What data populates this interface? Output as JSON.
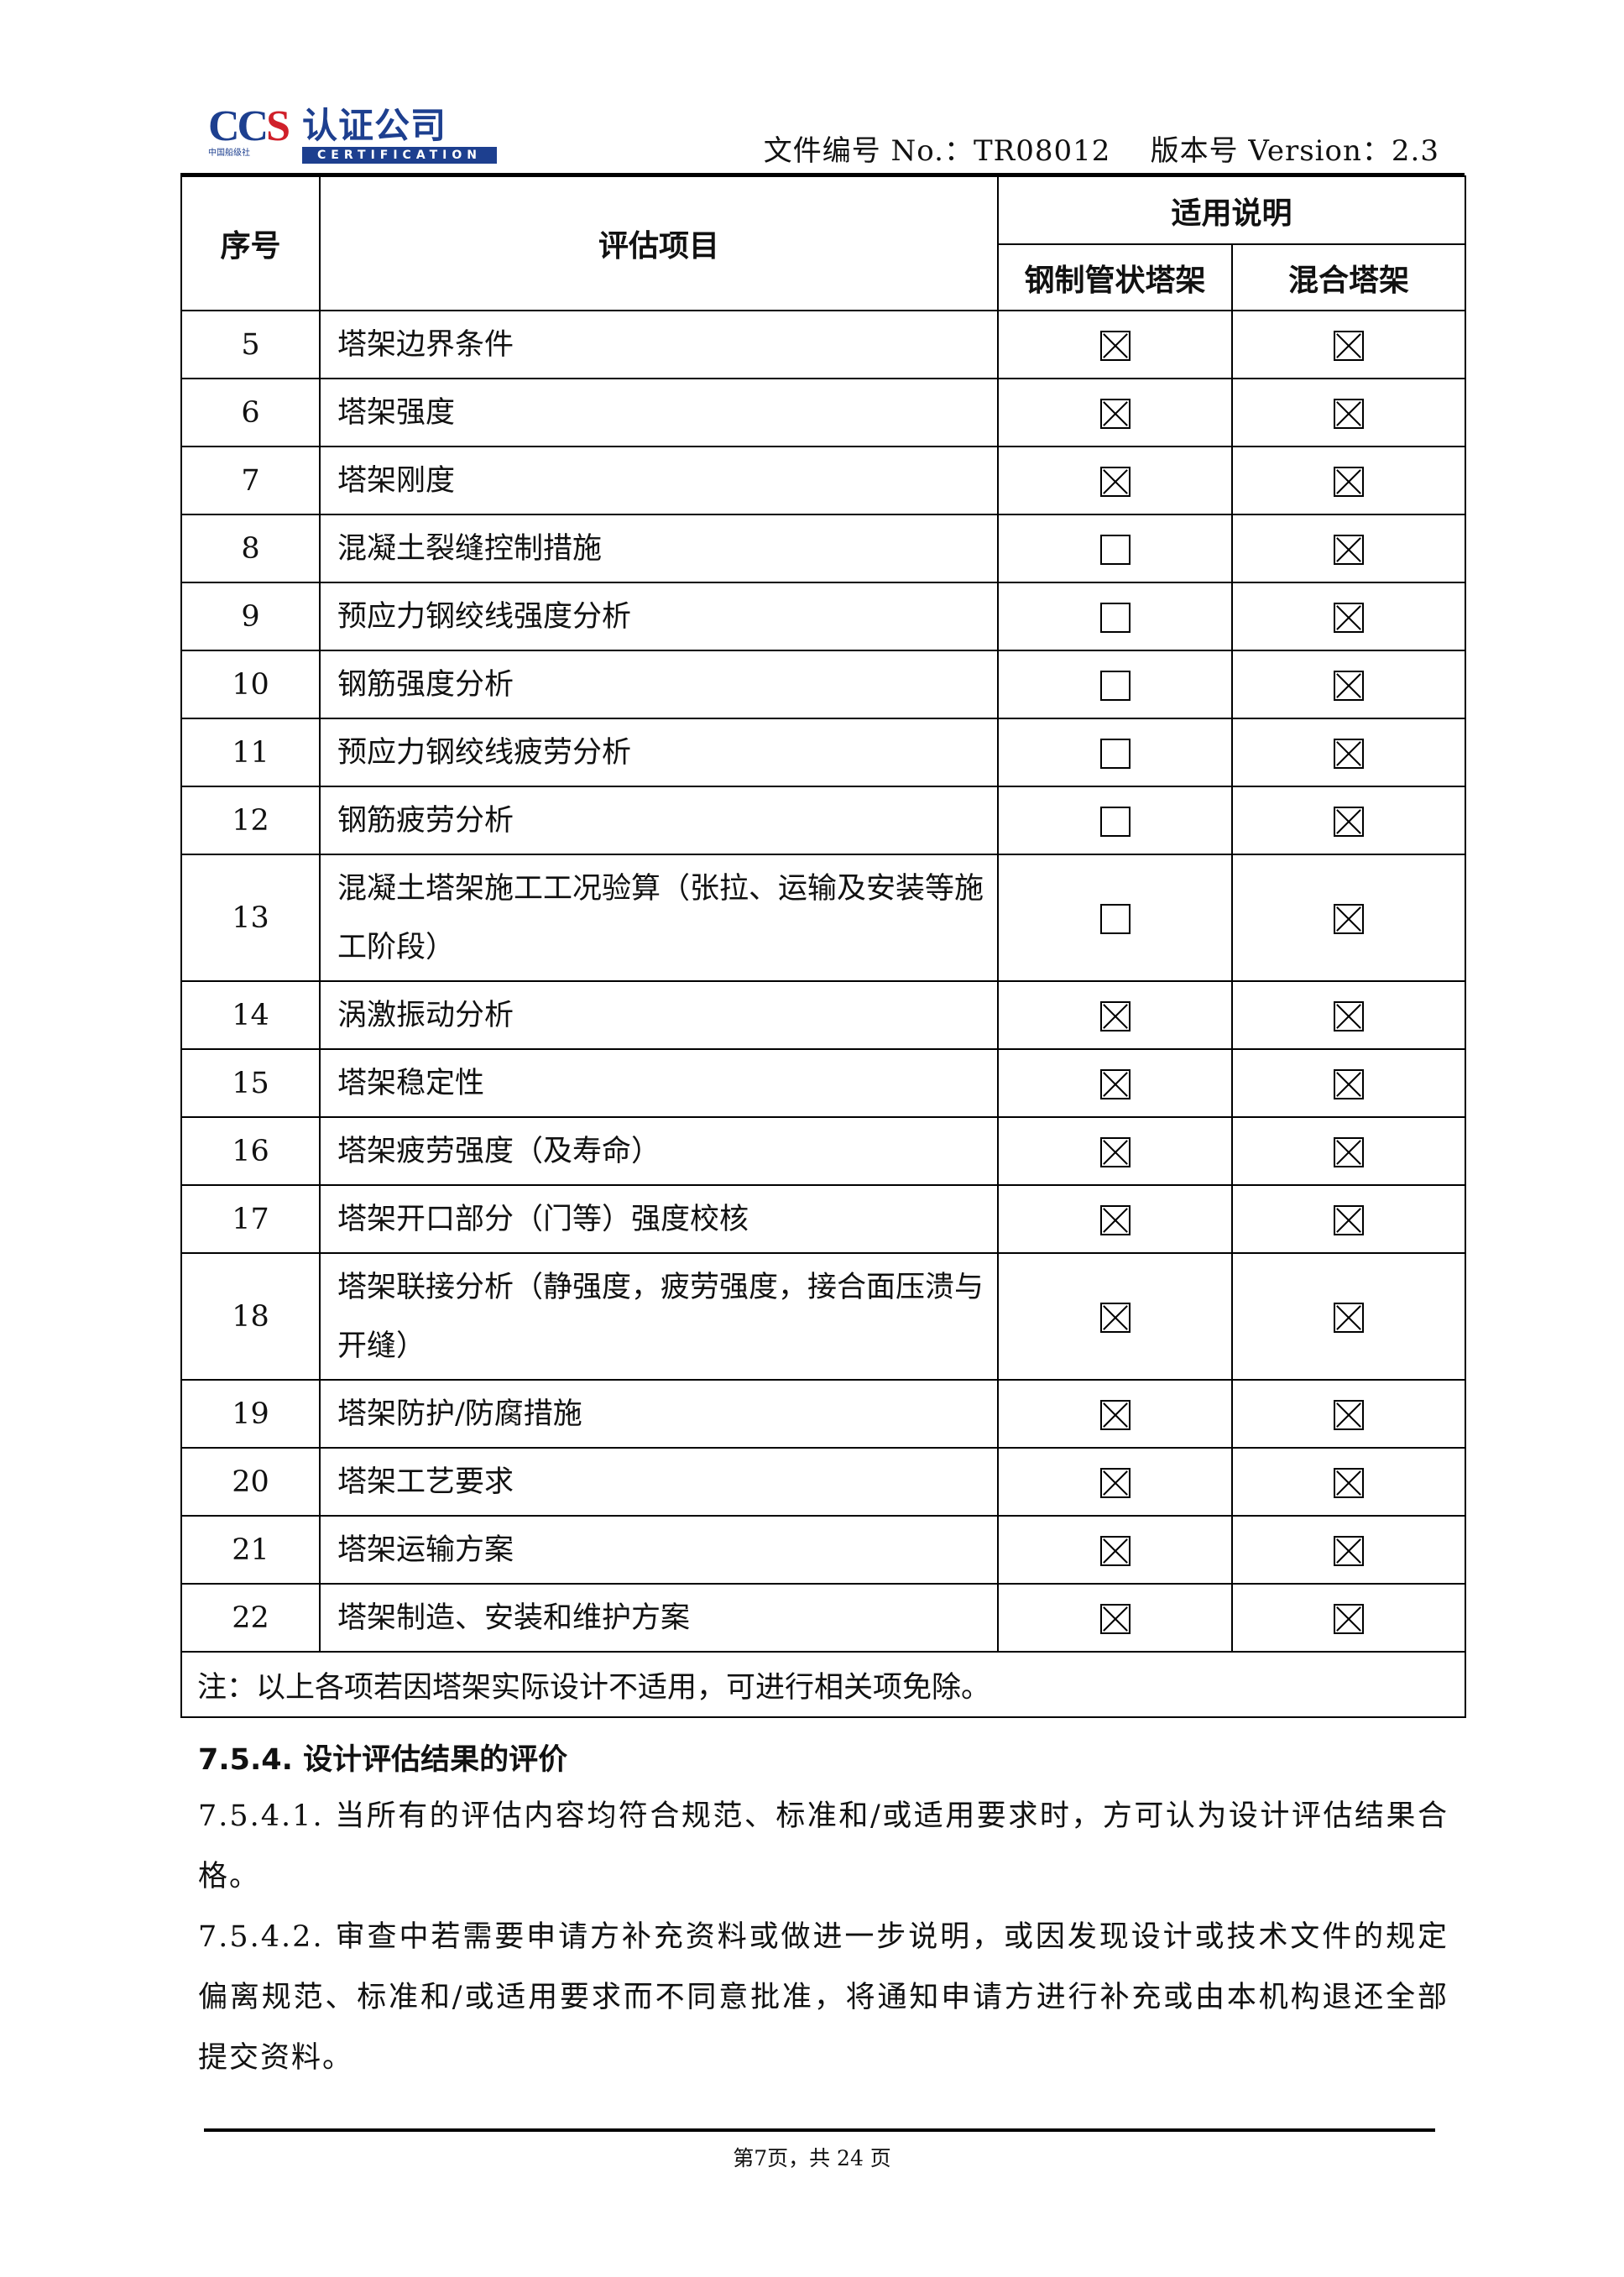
{
  "header": {
    "logo": {
      "mark": "CCS",
      "name": "认证公司",
      "society": "CHINA CLASSIFICATION SOCIETY 中国船级社",
      "subtitle": "CERTIFICATION"
    },
    "doc_no": "文件编号 No.：TR08012",
    "version": "版本号 Version：2.3"
  },
  "table": {
    "headers": {
      "no": "序号",
      "item": "评估项目",
      "applicability": "适用说明",
      "col1": "钢制管状塔架",
      "col2": "混合塔架"
    },
    "rows": [
      {
        "no": "5",
        "item": "塔架边界条件",
        "steel": true,
        "hybrid": true
      },
      {
        "no": "6",
        "item": "塔架强度",
        "steel": true,
        "hybrid": true
      },
      {
        "no": "7",
        "item": "塔架刚度",
        "steel": true,
        "hybrid": true
      },
      {
        "no": "8",
        "item": "混凝土裂缝控制措施",
        "steel": false,
        "hybrid": true
      },
      {
        "no": "9",
        "item": "预应力钢绞线强度分析",
        "steel": false,
        "hybrid": true
      },
      {
        "no": "10",
        "item": "钢筋强度分析",
        "steel": false,
        "hybrid": true
      },
      {
        "no": "11",
        "item": "预应力钢绞线疲劳分析",
        "steel": false,
        "hybrid": true
      },
      {
        "no": "12",
        "item": "钢筋疲劳分析",
        "steel": false,
        "hybrid": true
      },
      {
        "no": "13",
        "item": "混凝土塔架施工工况验算（张拉、运输及安装等施工阶段）",
        "steel": false,
        "hybrid": true
      },
      {
        "no": "14",
        "item": "涡激振动分析",
        "steel": true,
        "hybrid": true
      },
      {
        "no": "15",
        "item": "塔架稳定性",
        "steel": true,
        "hybrid": true
      },
      {
        "no": "16",
        "item": "塔架疲劳强度（及寿命）",
        "steel": true,
        "hybrid": true
      },
      {
        "no": "17",
        "item": "塔架开口部分（门等）强度校核",
        "steel": true,
        "hybrid": true
      },
      {
        "no": "18",
        "item": "塔架联接分析（静强度，疲劳强度，接合面压溃与开缝）",
        "steel": true,
        "hybrid": true
      },
      {
        "no": "19",
        "item": "塔架防护/防腐措施",
        "steel": true,
        "hybrid": true
      },
      {
        "no": "20",
        "item": "塔架工艺要求",
        "steel": true,
        "hybrid": true
      },
      {
        "no": "21",
        "item": "塔架运输方案",
        "steel": true,
        "hybrid": true
      },
      {
        "no": "22",
        "item": "塔架制造、安装和维护方案",
        "steel": true,
        "hybrid": true
      }
    ],
    "note": "注：以上各项若因塔架实际设计不适用，可进行相关项免除。"
  },
  "section": {
    "heading": "7.5.4. 设计评估结果的评价",
    "paragraphs": [
      "7.5.4.1. 当所有的评估内容均符合规范、标准和/或适用要求时，方可认为设计评估结果合格。",
      "7.5.4.2. 审查中若需要申请方补充资料或做进一步说明，或因发现设计或技术文件的规定偏离规范、标准和/或适用要求而不同意批准，将通知申请方进行补充或由本机构退还全部提交资料。"
    ]
  },
  "footer": {
    "page": "第7页，共 24 页"
  }
}
